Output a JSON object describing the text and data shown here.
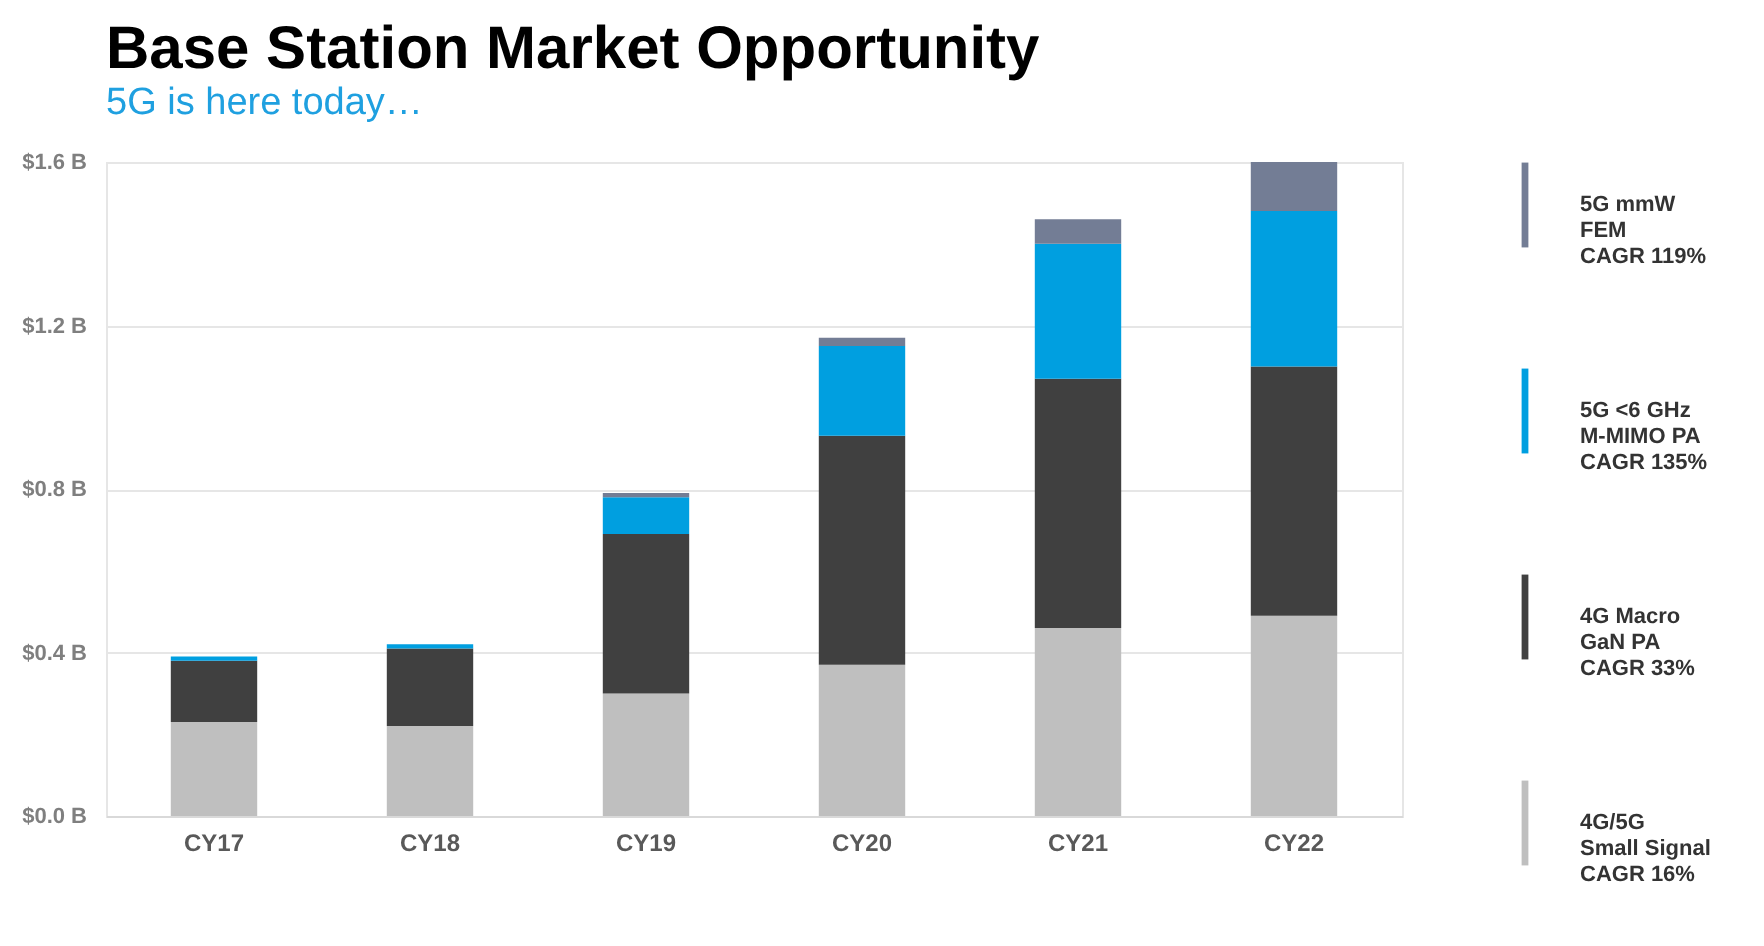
{
  "chart_data": {
    "type": "bar",
    "title": "Base Station Market Opportunity",
    "subtitle": "5G is here today…",
    "categories": [
      "CY17",
      "CY18",
      "CY19",
      "CY20",
      "CY21",
      "CY22"
    ],
    "stacked": true,
    "series": [
      {
        "name": "4G/5G\nSmall Signal\nCAGR 16%",
        "color": "#bfbfbf",
        "values": [
          0.23,
          0.22,
          0.3,
          0.37,
          0.46,
          0.49
        ]
      },
      {
        "name": "4G Macro\nGaN PA\nCAGR 33%",
        "color": "#404040",
        "values": [
          0.15,
          0.19,
          0.39,
          0.56,
          0.61,
          0.61
        ]
      },
      {
        "name": "5G <6 GHz\nM-MIMO  PA\nCAGR 135%",
        "color": "#009fe0",
        "values": [
          0.01,
          0.01,
          0.09,
          0.22,
          0.33,
          0.38
        ]
      },
      {
        "name": "5G mmW\nFEM\nCAGR 119%",
        "color": "#737d95",
        "values": [
          0.0,
          0.0,
          0.01,
          0.02,
          0.06,
          0.12
        ]
      }
    ],
    "ylim": [
      0,
      1.6
    ],
    "yticks": [
      {
        "value": 0,
        "label": "$0.0 B"
      },
      {
        "value": 0.4,
        "label": "$0.4 B"
      },
      {
        "value": 0.8,
        "label": "$0.8 B"
      },
      {
        "value": 1.2,
        "label": "$1.2 B"
      },
      {
        "value": 1.6,
        "label": "$1.6 B"
      }
    ],
    "grid": "y",
    "legend": "right"
  }
}
